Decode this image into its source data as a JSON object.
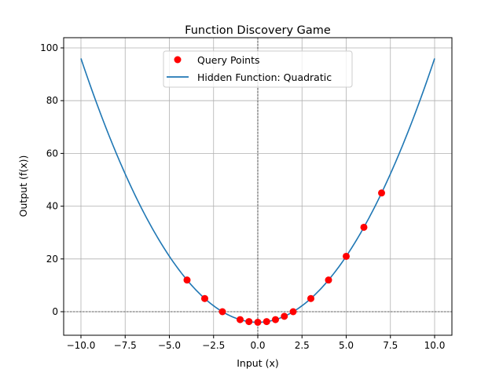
{
  "chart_data": {
    "type": "line+scatter",
    "title": "Function Discovery Game",
    "xlabel": "Input (x)",
    "ylabel": "Output (f(x))",
    "xlim": [
      -11,
      11
    ],
    "ylim": [
      -8.9,
      103.9
    ],
    "xticks": [
      -10,
      -7.5,
      -5,
      -2.5,
      0,
      2.5,
      5,
      7.5,
      10
    ],
    "xtick_labels": [
      "−10.0",
      "−7.5",
      "−5.0",
      "−2.5",
      "0.0",
      "2.5",
      "5.0",
      "7.5",
      "10.0"
    ],
    "yticks": [
      0,
      20,
      40,
      60,
      80,
      100
    ],
    "ytick_labels": [
      "0",
      "20",
      "40",
      "60",
      "80",
      "100"
    ],
    "grid": true,
    "legend_position": "top-center",
    "series": [
      {
        "name": "Query Points",
        "kind": "scatter",
        "color": "#ff0000",
        "x": [
          -4,
          -3,
          -2,
          -1,
          -0.5,
          0,
          0.5,
          1,
          1.5,
          2,
          3,
          4,
          5,
          6,
          7
        ],
        "y": [
          12,
          5,
          0,
          -3,
          -3.75,
          -4,
          -3.75,
          -3,
          -1.75,
          0,
          5,
          12,
          21,
          32,
          45
        ]
      },
      {
        "name": "Hidden Function: Quadratic",
        "kind": "line",
        "color": "#1f77b4",
        "x_range": [
          -10,
          10
        ],
        "formula": "x^2 - 4"
      }
    ],
    "reference_lines": {
      "x": 0,
      "y": 0,
      "style": "dashed black"
    }
  }
}
